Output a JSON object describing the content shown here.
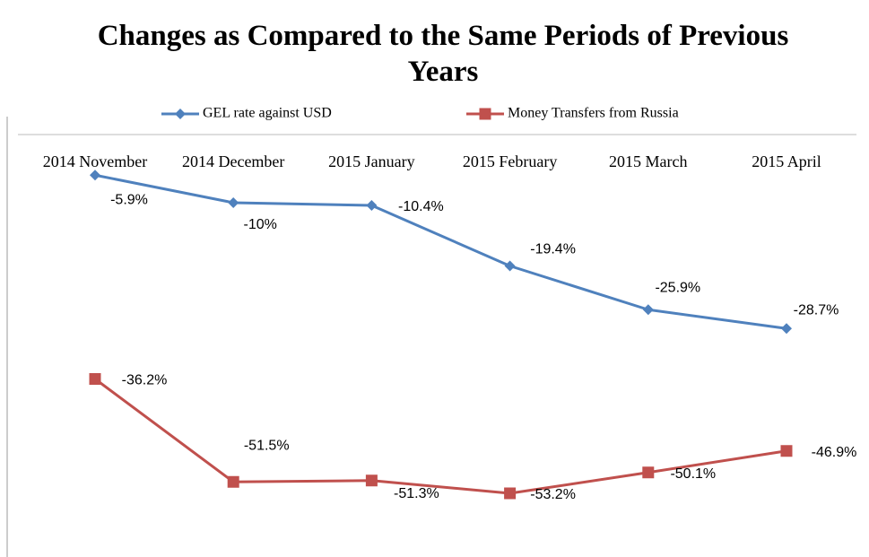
{
  "chart_data": {
    "type": "line",
    "title": "Changes as Compared to the Same Periods of Previous Years",
    "categories": [
      "2014 November",
      "2014 December",
      "2015 January",
      "2015 February",
      "2015 March",
      "2015 April"
    ],
    "series": [
      {
        "name": "GEL rate against USD",
        "color": "#4f81bd",
        "marker": "diamond",
        "values": [
          -5.9,
          -10,
          -10.4,
          -19.4,
          -25.9,
          -28.7
        ],
        "value_labels": [
          "-5.9%",
          "-10%",
          "-10.4%",
          "-19.4%",
          "-25.9%",
          "-28.7%"
        ]
      },
      {
        "name": "Money Transfers from Russia",
        "color": "#c0504d",
        "marker": "square",
        "values": [
          -36.2,
          -51.5,
          -51.3,
          -53.2,
          -50.1,
          -46.9
        ],
        "value_labels": [
          "-36.2%",
          "-51.5%",
          "-51.3%",
          "-53.2%",
          "-50.1%",
          "-46.9%"
        ]
      }
    ],
    "ylim": [
      -60,
      0
    ],
    "legend": "top"
  }
}
